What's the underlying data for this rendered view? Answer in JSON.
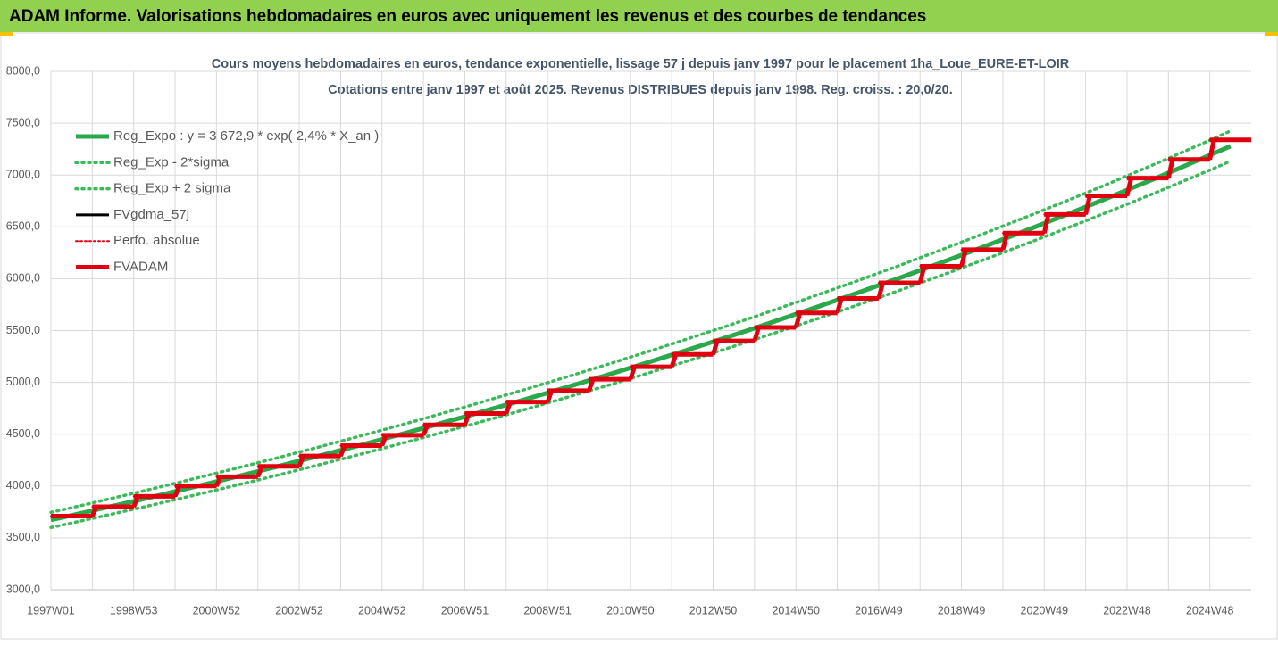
{
  "header": "ADAM Informe. Valorisations hebdomadaires en euros avec uniquement les revenus et des courbes de tendances",
  "chart_data": {
    "type": "line",
    "title": "Cours moyens hebdomadaires en euros, tendance exponentielle, lissage 57 j depuis janv 1997 pour le placement 1ha_Loue_EURE-ET-LOIR",
    "subtitle": "Cotations entre janv 1997 et août 2025. Revenus DISTRIBUES depuis janv 1998. Reg. croiss. : 20,0/20.",
    "categories": [
      "1997W01",
      null,
      null,
      null,
      "1998W53",
      null,
      null,
      null,
      "2000W52",
      null,
      null,
      null,
      "2002W52",
      null,
      null,
      null,
      "2004W52",
      null,
      null,
      null,
      "2006W51",
      null,
      null,
      null,
      "2008W51",
      null,
      null,
      null,
      "2010W50",
      null,
      null,
      null,
      "2012W50",
      null,
      null,
      null,
      "2014W50",
      null,
      null,
      null,
      "2016W49",
      null,
      null,
      null,
      "2018W49",
      null,
      null,
      null,
      "2020W49",
      null,
      null,
      null,
      "2022W48",
      null,
      null,
      null,
      "2024W48",
      null
    ],
    "ylim": [
      3000,
      8000
    ],
    "yticks": [
      {
        "value": 3000,
        "label": "3000,0"
      },
      {
        "value": 3500,
        "label": "3500,0"
      },
      {
        "value": 4000,
        "label": "4000,0"
      },
      {
        "value": 4500,
        "label": "4500,0"
      },
      {
        "value": 5000,
        "label": "5000,0"
      },
      {
        "value": 5500,
        "label": "5500,0"
      },
      {
        "value": 6000,
        "label": "6000,0"
      },
      {
        "value": 6500,
        "label": "6500,0"
      },
      {
        "value": 7000,
        "label": "7000,0"
      },
      {
        "value": 7500,
        "label": "7500,0"
      },
      {
        "value": 8000,
        "label": "8000,0"
      }
    ],
    "grid": true,
    "legend": "upper-left",
    "series": [
      {
        "name": "Reg_Expo : y = 3 672,9 * exp( 2,4% *  X_an )",
        "color": "#2aa84a",
        "style": "solid",
        "values": [
          3673,
          3717,
          3762,
          3808,
          3853,
          3900,
          3947,
          3995,
          4043,
          4092,
          4141,
          4191,
          4242,
          4293,
          4345,
          4397,
          4450,
          4504,
          4558,
          4614,
          4669,
          4726,
          4783,
          4840,
          4899,
          4958,
          5018,
          5078,
          5140,
          5202,
          5265,
          5328,
          5392,
          5457,
          5523,
          5590,
          5658,
          5726,
          5795,
          5865,
          5936,
          6007,
          6080,
          6153,
          6228,
          6303,
          6379,
          6456,
          6534,
          6613,
          6692,
          6773,
          6855,
          6938,
          7021,
          7106,
          7192,
          7279
        ]
      },
      {
        "name": "Reg_Exp - 2*sigma",
        "color": "#3cb95a",
        "style": "dotted",
        "values": [
          3600,
          3643,
          3687,
          3732,
          3776,
          3822,
          3868,
          3915,
          3962,
          4010,
          4058,
          4107,
          4157,
          4207,
          4258,
          4309,
          4361,
          4414,
          4467,
          4522,
          4576,
          4631,
          4687,
          4743,
          4801,
          4859,
          4918,
          4976,
          5037,
          5098,
          5160,
          5221,
          5284,
          5348,
          5413,
          5478,
          5545,
          5611,
          5679,
          5748,
          5817,
          5887,
          5958,
          6030,
          6103,
          6177,
          6251,
          6327,
          6403,
          6481,
          6558,
          6638,
          6718,
          6799,
          6881,
          6964,
          7048,
          7133
        ]
      },
      {
        "name": "Reg_Exp + 2 sigma",
        "color": "#3cb95a",
        "style": "dotted",
        "values": [
          3746,
          3791,
          3837,
          3884,
          3930,
          3978,
          4026,
          4075,
          4124,
          4174,
          4224,
          4275,
          4327,
          4379,
          4432,
          4485,
          4539,
          4594,
          4649,
          4706,
          4762,
          4821,
          4879,
          4937,
          4997,
          5057,
          5118,
          5180,
          5243,
          5306,
          5370,
          5435,
          5500,
          5566,
          5633,
          5702,
          5771,
          5841,
          5911,
          5982,
          6055,
          6127,
          6202,
          6276,
          6353,
          6429,
          6507,
          6585,
          6665,
          6745,
          6826,
          6908,
          6992,
          7077,
          7161,
          7248,
          7336,
          7425
        ]
      },
      {
        "name": "FVgdma_57j",
        "color": "#000000",
        "style": "step",
        "values": [
          3710,
          3710,
          3800,
          3800,
          3900,
          3900,
          4000,
          4000,
          4090,
          4090,
          4190,
          4190,
          4290,
          4290,
          4390,
          4390,
          4490,
          4490,
          4590,
          4590,
          4700,
          4700,
          4810,
          4810,
          4920,
          4920,
          5030,
          5030,
          5150,
          5150,
          5270,
          5270,
          5400,
          5400,
          5530,
          5530,
          5670,
          5670,
          5810,
          5810,
          5960,
          5960,
          6120,
          6120,
          6280,
          6280,
          6440,
          6440,
          6620,
          6620,
          6800,
          6800,
          6970,
          6970,
          7150,
          7150,
          7340,
          7340
        ]
      },
      {
        "name": "Perfo. absolue",
        "color": "#e0000f",
        "style": "dotted-step",
        "values": [
          3710,
          3710,
          3800,
          3800,
          3900,
          3900,
          4000,
          4000,
          4090,
          4090,
          4190,
          4190,
          4290,
          4290,
          4390,
          4390,
          4490,
          4490,
          4590,
          4590,
          4700,
          4700,
          4810,
          4810,
          4920,
          4920,
          5030,
          5030,
          5150,
          5150,
          5270,
          5270,
          5400,
          5400,
          5530,
          5530,
          5670,
          5670,
          5810,
          5810,
          5960,
          5960,
          6120,
          6120,
          6280,
          6280,
          6440,
          6440,
          6620,
          6620,
          6800,
          6800,
          6970,
          6970,
          7150,
          7150,
          7340,
          7340
        ]
      },
      {
        "name": "FVADAM",
        "color": "#e0000f",
        "style": "thick-step",
        "values": [
          3710,
          3710,
          3800,
          3800,
          3900,
          3900,
          4000,
          4000,
          4090,
          4090,
          4190,
          4190,
          4290,
          4290,
          4390,
          4390,
          4490,
          4490,
          4590,
          4590,
          4700,
          4700,
          4810,
          4810,
          4920,
          4920,
          5030,
          5030,
          5150,
          5150,
          5270,
          5270,
          5400,
          5400,
          5530,
          5530,
          5670,
          5670,
          5810,
          5810,
          5960,
          5960,
          6120,
          6120,
          6280,
          6280,
          6440,
          6440,
          6620,
          6620,
          6800,
          6800,
          6970,
          6970,
          7150,
          7150,
          7340,
          7340
        ]
      }
    ]
  }
}
